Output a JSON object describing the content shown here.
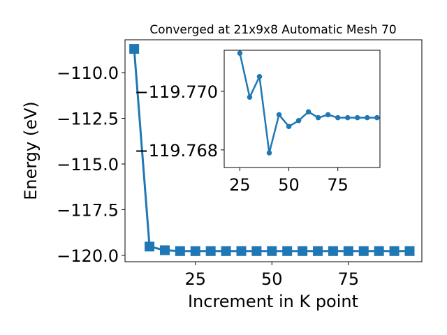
{
  "chart_data": [
    {
      "type": "line",
      "title": "Converged at 21x9x8 Automatic Mesh 70",
      "xlabel": "Increment in K point",
      "ylabel": "Energy (eV)",
      "x": [
        5,
        10,
        15,
        20,
        25,
        30,
        35,
        40,
        45,
        50,
        55,
        60,
        65,
        70,
        75,
        80,
        85,
        90,
        95
      ],
      "series": [
        {
          "marker": "square",
          "values": [
            -108.7,
            -119.52,
            -119.72,
            -119.77,
            -119.771,
            -119.7695,
            -119.7702,
            -119.7679,
            -119.7693,
            -119.7689,
            -119.769,
            -119.7693,
            -119.7691,
            -119.7692,
            -119.7691,
            -119.7691,
            -119.7691,
            -119.7691,
            -119.7691
          ]
        }
      ],
      "xlim": [
        2,
        99
      ],
      "ylim": [
        -120.35,
        -108.2
      ],
      "xticks": [
        25,
        50,
        75
      ],
      "yticks": [
        -110.0,
        -112.5,
        -115.0,
        -117.5,
        -120.0
      ],
      "xtick_labels": [
        "25",
        "50",
        "75"
      ],
      "ytick_labels": [
        "−110.0",
        "−112.5",
        "−115.0",
        "−117.5",
        "−120.0"
      ],
      "grid": false,
      "color": "#1f77b4"
    },
    {
      "type": "line",
      "role": "inset",
      "x": [
        25,
        30,
        35,
        40,
        45,
        50,
        55,
        60,
        65,
        70,
        75,
        80,
        85,
        90,
        95
      ],
      "series": [
        {
          "marker": "circle",
          "values": [
            -119.7713,
            -119.7698,
            -119.7705,
            -119.7679,
            -119.7692,
            -119.7688,
            -119.769,
            -119.7693,
            -119.7691,
            -119.7692,
            -119.7691,
            -119.7691,
            -119.7691,
            -119.7691,
            -119.7691
          ]
        }
      ],
      "xlim": [
        17,
        96.5
      ],
      "ylim": [
        -119.7674,
        -119.7714
      ],
      "xticks": [
        25,
        50,
        75
      ],
      "yticks": [
        -119.77,
        -119.768
      ],
      "xtick_labels": [
        "25",
        "50",
        "75"
      ],
      "ytick_labels": [
        "−119.770",
        "−119.768"
      ],
      "grid": false,
      "color": "#1f77b4"
    }
  ]
}
